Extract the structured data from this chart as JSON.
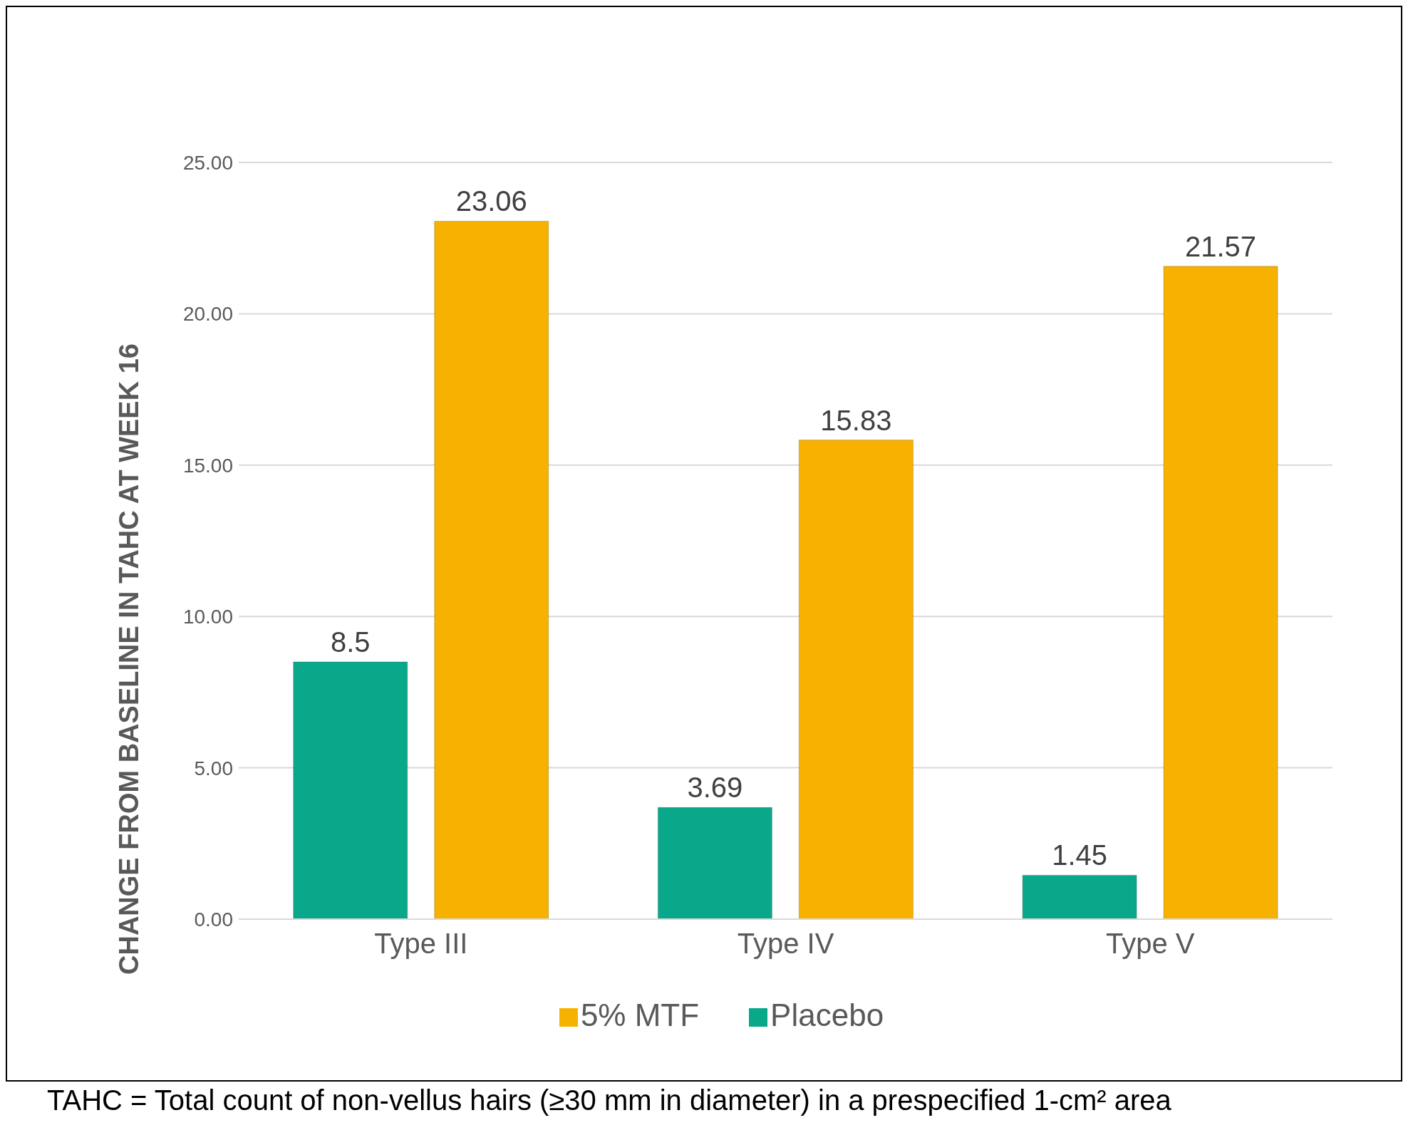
{
  "chart_data": {
    "type": "bar",
    "ylabel": "CHANGE FROM BASELINE IN TAHC AT WEEK 16",
    "categories": [
      "Type III",
      "Type IV",
      "Type V"
    ],
    "series": [
      {
        "name": "Placebo",
        "color": "#0aa88a",
        "values": [
          8.5,
          3.69,
          1.45
        ]
      },
      {
        "name": "5% MTF",
        "color": "#f7b100",
        "values": [
          23.06,
          15.83,
          21.57
        ]
      }
    ],
    "ylim": [
      0,
      25
    ],
    "yticks": [
      {
        "value": 0,
        "label": "0.00"
      },
      {
        "value": 5,
        "label": "5.00"
      },
      {
        "value": 10,
        "label": "10.00"
      },
      {
        "value": 15,
        "label": "15.00"
      },
      {
        "value": 20,
        "label": "20.00"
      },
      {
        "value": 25,
        "label": "25.00"
      }
    ],
    "grid": "y",
    "legend": "bottom",
    "data_labels": true,
    "annotations": [
      "TAHC = Total count of non-vellus hairs (≥30 mm in diameter) in a prespecified 1-cm² area"
    ]
  }
}
